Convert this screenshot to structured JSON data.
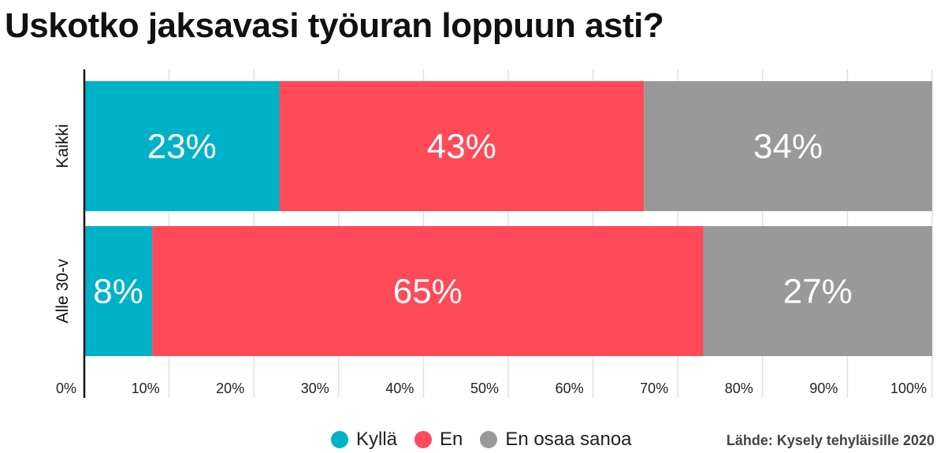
{
  "chart_data": {
    "type": "bar",
    "orientation": "horizontal",
    "stacked": true,
    "title": "Uskotko jaksavasi työuran loppuun asti?",
    "categories": [
      "Kaikki",
      "Alle 30-v"
    ],
    "series": [
      {
        "name": "Kyllä",
        "color": "#00b2c8",
        "values": [
          23,
          8
        ],
        "labels": [
          "23%",
          "8%"
        ]
      },
      {
        "name": "En",
        "color": "#ff4a5a",
        "values": [
          43,
          65
        ],
        "labels": [
          "43%",
          "65%"
        ]
      },
      {
        "name": "En osaa sanoa",
        "color": "#999999",
        "values": [
          34,
          27
        ],
        "labels": [
          "34%",
          "27%"
        ]
      }
    ],
    "xlim": [
      0,
      100
    ],
    "xticks": [
      "0%",
      "10%",
      "20%",
      "30%",
      "40%",
      "50%",
      "60%",
      "70%",
      "80%",
      "90%",
      "100%"
    ],
    "grid": true,
    "legend_position": "bottom",
    "source": "Lähde: Kysely tehyläisille 2020"
  }
}
